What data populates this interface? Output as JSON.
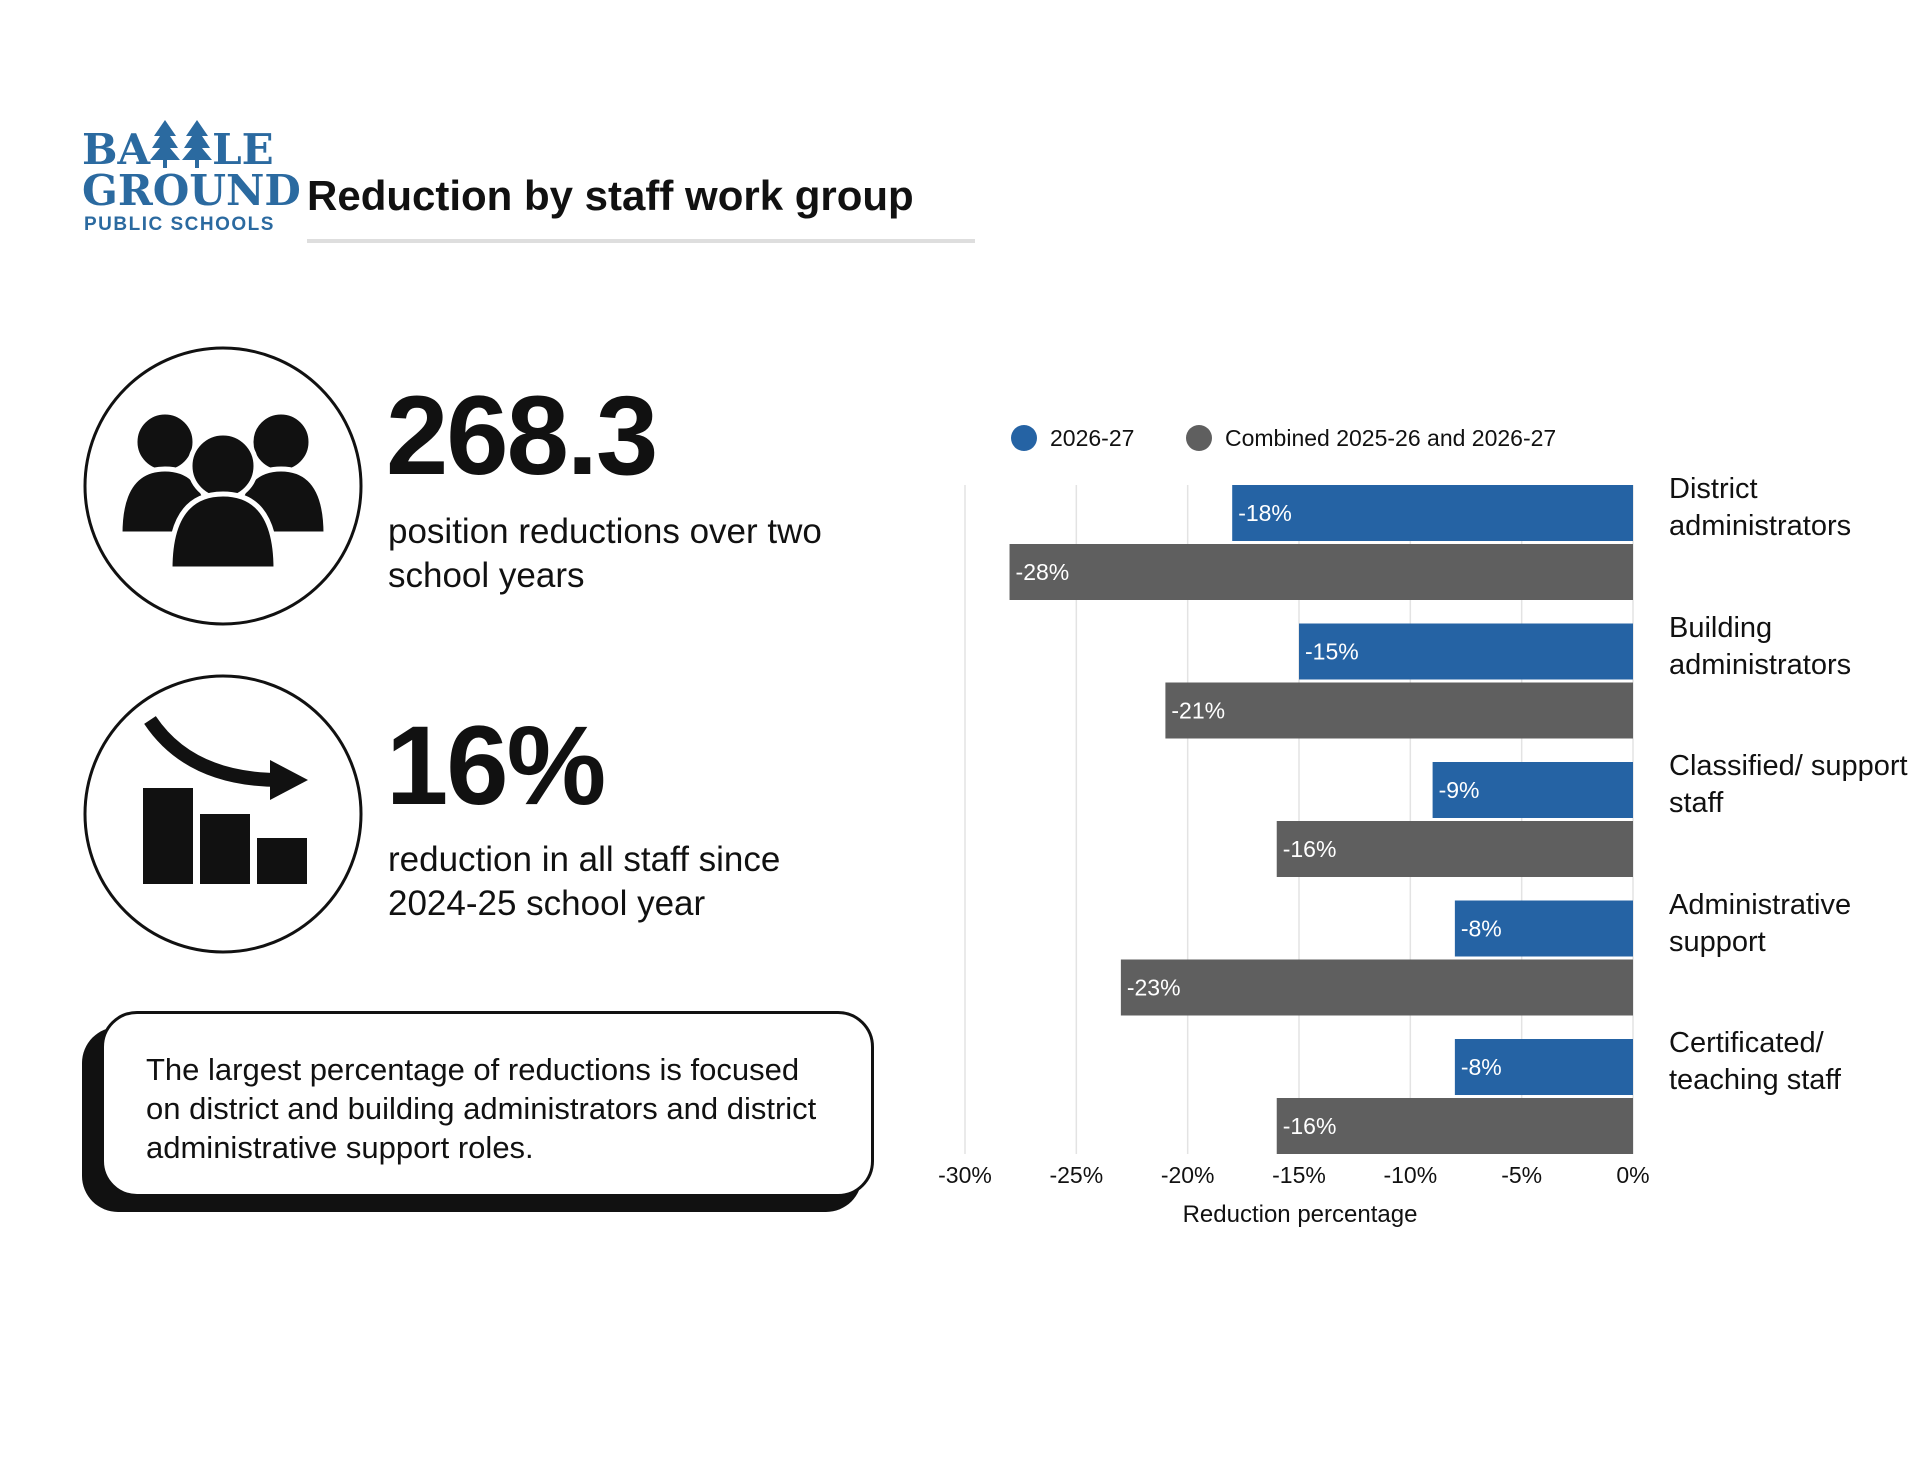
{
  "logo": {
    "name_start": "BA",
    "name_end": "LE",
    "line2": "GROUND",
    "line3": "PUBLIC SCHOOLS"
  },
  "title": "Reduction by staff work group",
  "stats": [
    {
      "value": "268.3",
      "label": "position reductions over two school years"
    },
    {
      "value": "16%",
      "label": "reduction in all staff since 2024-25 school year"
    }
  ],
  "callout": "The largest percentage of reductions is focused on district and building administrators and district administrative support roles.",
  "chart_data": {
    "type": "bar",
    "orientation": "horizontal",
    "categories": [
      "District administrators",
      "Building administrators",
      "Classified/ support staff",
      "Administrative support",
      "Certificated/ teaching staff"
    ],
    "series": [
      {
        "name": "2026-27",
        "color": "#2563a4",
        "values": [
          -18,
          -15,
          -9,
          -8,
          -8
        ],
        "value_labels": [
          "-18%",
          "-15%",
          "-9%",
          "-8%",
          "-8%"
        ]
      },
      {
        "name": "Combined 2025-26 and 2026-27",
        "color": "#5f5f5f",
        "values": [
          -28,
          -21,
          -16,
          -23,
          -16
        ],
        "value_labels": [
          "-28%",
          "-21%",
          "-16%",
          "-23%",
          "-16%"
        ]
      }
    ],
    "xlim": [
      -30,
      0
    ],
    "xticks": [
      {
        "value": -30,
        "label": "-30%"
      },
      {
        "value": -25,
        "label": "-25%"
      },
      {
        "value": -20,
        "label": "-20%"
      },
      {
        "value": -15,
        "label": "-15%"
      },
      {
        "value": -10,
        "label": "-10%"
      },
      {
        "value": -5,
        "label": "-5%"
      },
      {
        "value": 0,
        "label": "0%"
      }
    ],
    "x_label": "Reduction percentage",
    "grid": true,
    "legend": "top"
  }
}
